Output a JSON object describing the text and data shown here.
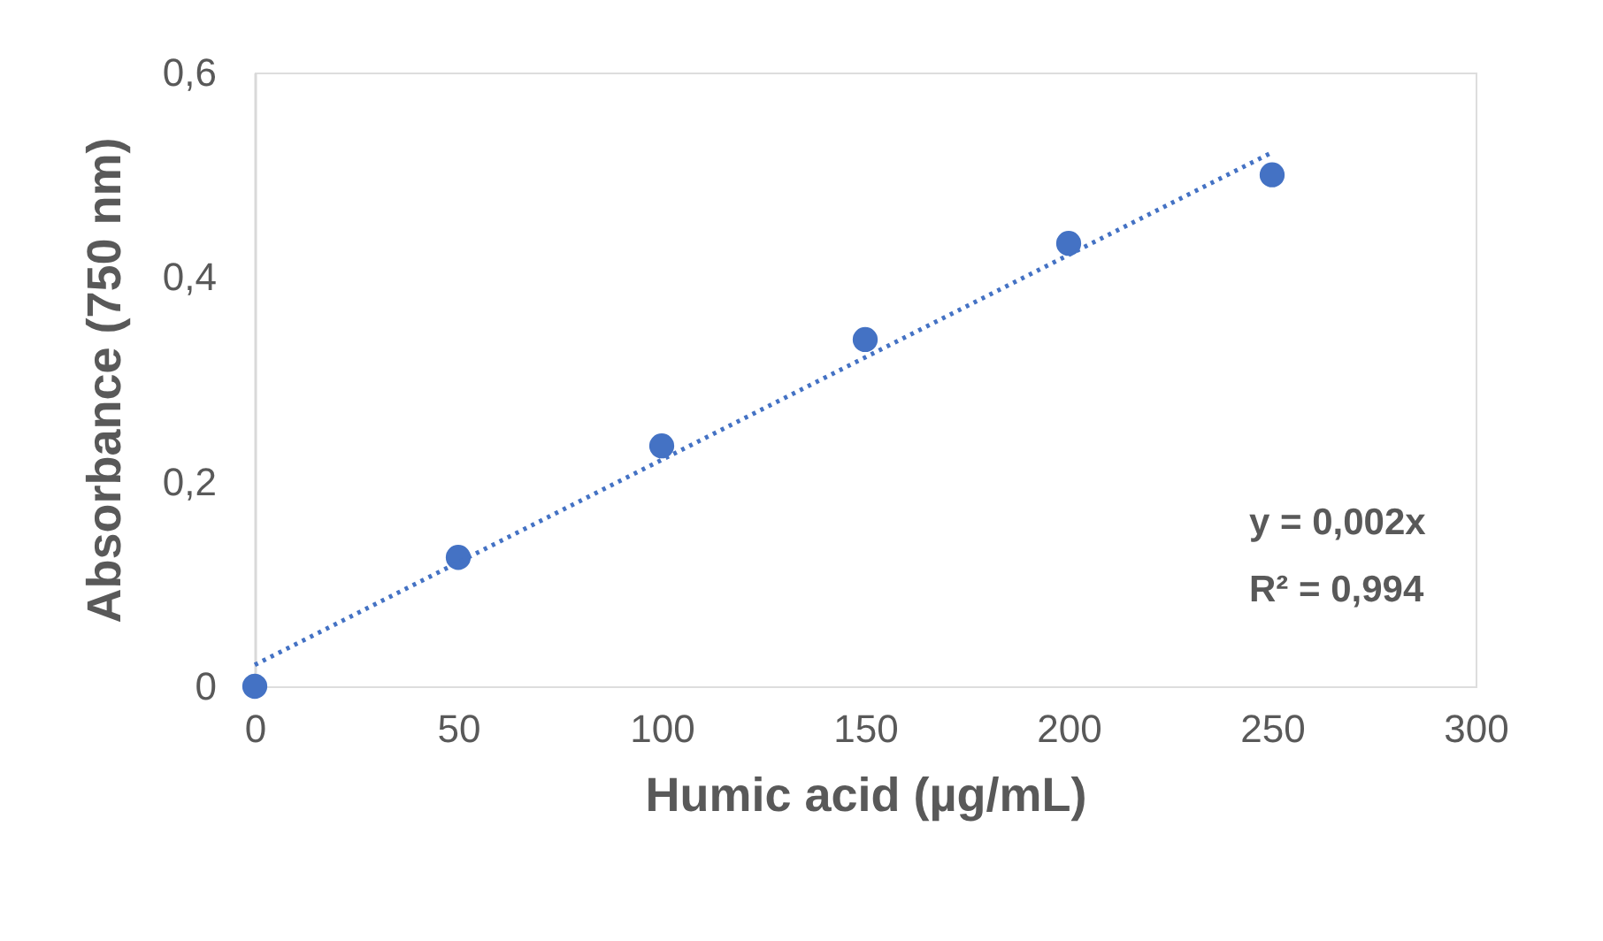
{
  "chart_data": {
    "type": "scatter",
    "xlabel": "Humic acid (µg/mL)",
    "ylabel": "Absorbance (750 nm)",
    "xlim": [
      0,
      300
    ],
    "xticks": [
      0,
      50,
      100,
      150,
      200,
      250,
      300
    ],
    "ylim": [
      0,
      0.6
    ],
    "yticks": [
      0,
      {
        "value": 0.2,
        "label": "0,2"
      },
      {
        "value": 0.4,
        "label": "0,4"
      },
      {
        "value": 0.6,
        "label": "0,6"
      }
    ],
    "grid": false,
    "legend": false,
    "series": [
      {
        "color": "#4472c4",
        "marker": "circle",
        "x": [
          0,
          50,
          100,
          150,
          200,
          250
        ],
        "values": [
          0,
          0.126,
          0.235,
          0.339,
          0.433,
          0.5
        ]
      },
      {
        "type": "line",
        "color": "#4472c4",
        "line_style": "dotted",
        "marker": "none",
        "x": [
          0,
          250
        ],
        "values": [
          0.021,
          0.522
        ]
      }
    ],
    "annotations": [
      "y = 0,002x",
      "R² = 0,994"
    ]
  }
}
